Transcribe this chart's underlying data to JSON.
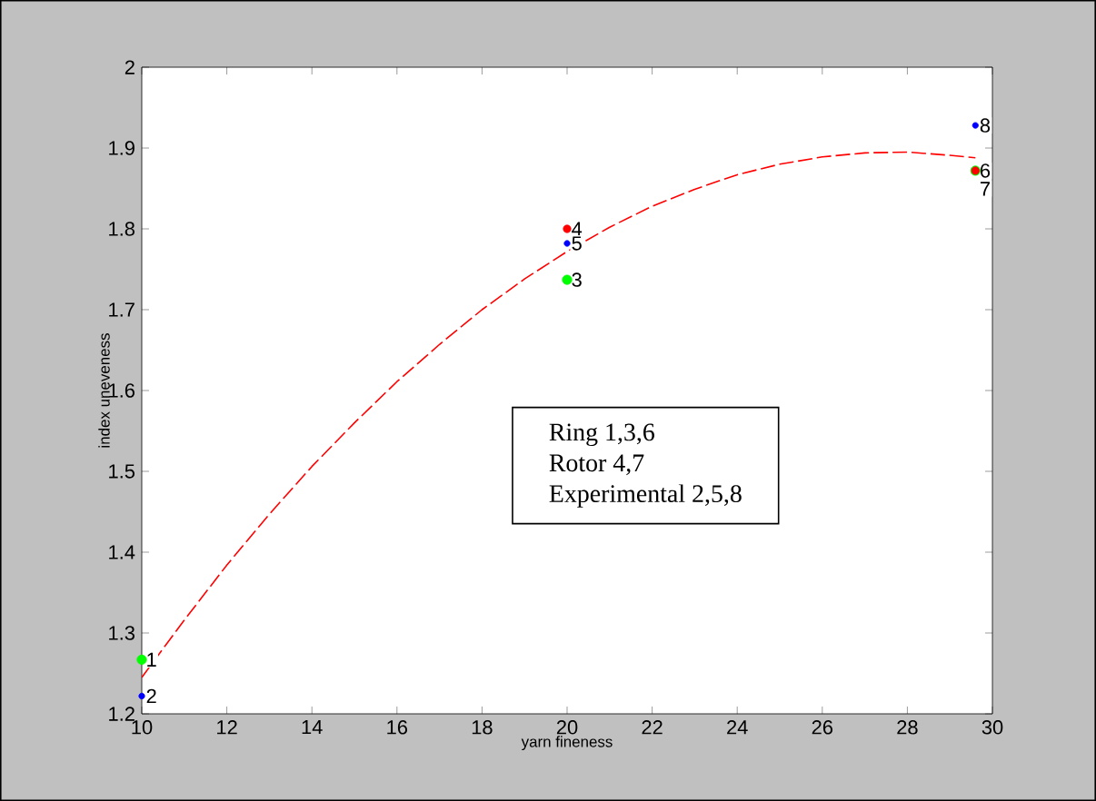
{
  "chart_data": {
    "type": "scatter",
    "xlabel": "yarn fineness",
    "ylabel": "index uneveness",
    "xlim": [
      10,
      30
    ],
    "ylim": [
      1.2,
      2
    ],
    "xticks": [
      10,
      12,
      14,
      16,
      18,
      20,
      22,
      24,
      26,
      28,
      30
    ],
    "yticks": [
      1.2,
      1.3,
      1.4,
      1.5,
      1.6,
      1.7,
      1.8,
      1.9,
      2
    ],
    "grid": false,
    "marker": "circle",
    "series": [
      {
        "color": "#00ff00",
        "x": [
          10,
          20,
          29.6
        ],
        "values": [
          1.267,
          1.737,
          1.872
        ]
      },
      {
        "color": "#ff0000",
        "x": [
          20,
          29.6
        ],
        "values": [
          1.8,
          1.872
        ]
      },
      {
        "color": "#0000ff",
        "x": [
          10,
          20,
          29.6
        ],
        "values": [
          1.222,
          1.782,
          1.928
        ]
      },
      {
        "type": "line",
        "color": "#ff0000",
        "line_style": "dashed",
        "marker": "none",
        "x": [
          10,
          11,
          12,
          13,
          14,
          15,
          16,
          17,
          18,
          19,
          20,
          21,
          22,
          23,
          24,
          25,
          26,
          27,
          28,
          29,
          29.6
        ],
        "values": [
          1.245,
          1.316,
          1.384,
          1.447,
          1.506,
          1.56,
          1.611,
          1.657,
          1.7,
          1.738,
          1.772,
          1.802,
          1.828,
          1.849,
          1.867,
          1.88,
          1.889,
          1.894,
          1.895,
          1.891,
          1.888
        ]
      }
    ],
    "annotations": [
      {
        "text": "1",
        "x": 10,
        "y": 1.267
      },
      {
        "text": "2",
        "x": 10,
        "y": 1.222
      },
      {
        "text": "3",
        "x": 20,
        "y": 1.737
      },
      {
        "text": "4",
        "x": 20,
        "y": 1.8
      },
      {
        "text": "5",
        "x": 20,
        "y": 1.782
      },
      {
        "text": "6",
        "x": 29.6,
        "y": 1.872
      },
      {
        "text": "7",
        "x": 29.6,
        "y": 1.872
      },
      {
        "text": "8",
        "x": 29.6,
        "y": 1.928
      },
      "Ring 1,3,6",
      "Rotor 4,7",
      "Experimental 2,5,8"
    ]
  }
}
